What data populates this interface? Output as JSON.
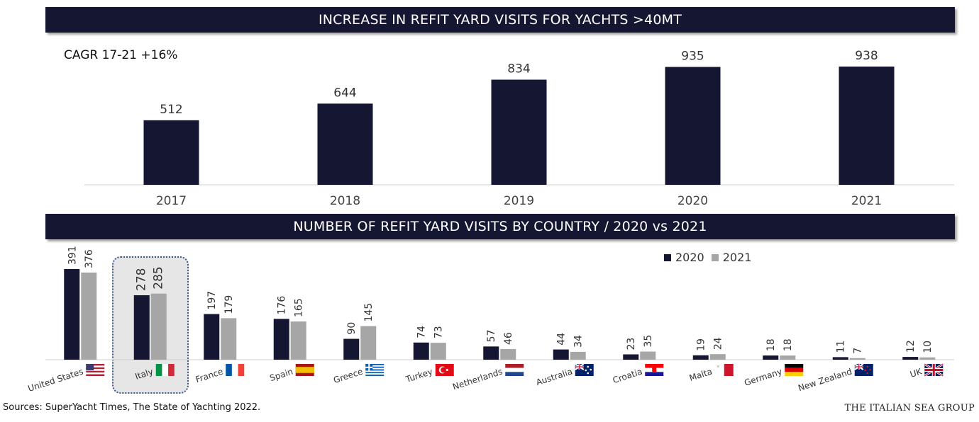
{
  "banner_top": "INCREASE IN REFIT YARD VISITS FOR YACHTS >40MT",
  "banner_bottom": "NUMBER OF REFIT YARD VISITS BY COUNTRY / 2020 vs 2021",
  "cagr": "CAGR 17-21 +16%",
  "source": "Sources: SuperYacht Times, The State of Yachting 2022.",
  "brand": "THE ITALIAN SEA GROUP",
  "colors": {
    "dark": "#151631",
    "grey": "#a6a6a6",
    "highlight_bg": "#e6e6e6"
  },
  "chart_data": [
    {
      "type": "bar",
      "categories": [
        "2017",
        "2018",
        "2019",
        "2020",
        "2021"
      ],
      "values": [
        512,
        644,
        834,
        935,
        938
      ],
      "title": "INCREASE IN REFIT YARD VISITS FOR YACHTS >40MT",
      "ylim": [
        0,
        1000
      ]
    },
    {
      "type": "bar",
      "categories": [
        "United States",
        "Italy",
        "France",
        "Spain",
        "Greece",
        "Turkey",
        "Netherlands",
        "Australia",
        "Croatia",
        "Malta",
        "Germany",
        "New Zealand",
        "UK"
      ],
      "series": [
        {
          "name": "2020",
          "values": [
            391,
            278,
            197,
            176,
            90,
            74,
            57,
            44,
            23,
            19,
            18,
            11,
            12
          ]
        },
        {
          "name": "2021",
          "values": [
            376,
            285,
            179,
            165,
            145,
            73,
            46,
            34,
            35,
            24,
            18,
            7,
            10
          ]
        }
      ],
      "title": "NUMBER OF REFIT YARD VISITS BY COUNTRY / 2020 vs 2021",
      "legend": "top-right",
      "highlight": "Italy",
      "flags": [
        "us-flag-icon",
        "italy-flag-icon",
        "france-flag-icon",
        "spain-flag-icon",
        "greece-flag-icon",
        "turkey-flag-icon",
        "netherlands-flag-icon",
        "australia-flag-icon",
        "croatia-flag-icon",
        "malta-flag-icon",
        "germany-flag-icon",
        "new-zealand-flag-icon",
        "uk-flag-icon"
      ],
      "ylim": [
        0,
        400
      ]
    }
  ]
}
